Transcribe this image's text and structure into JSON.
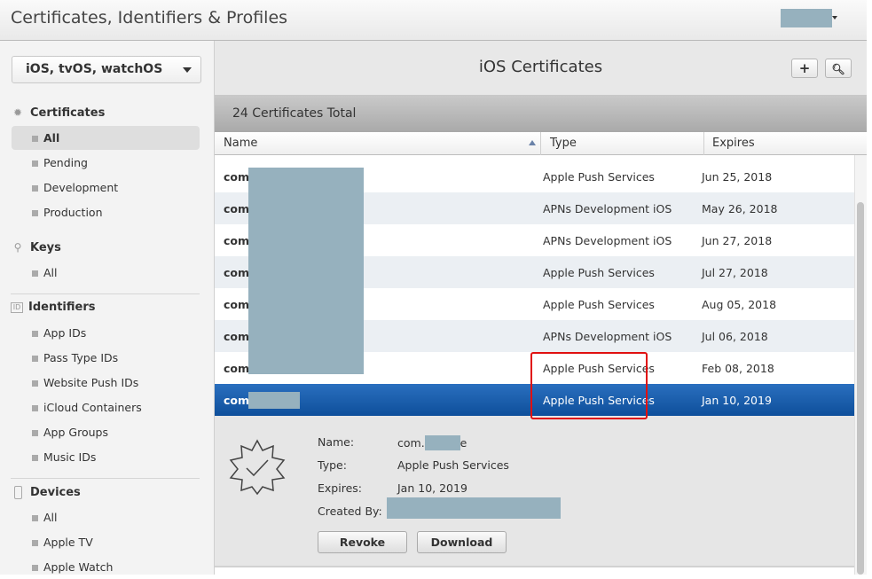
{
  "header": {
    "title": "Certificates, Identifiers & Profiles"
  },
  "sidebar": {
    "platform": "iOS, tvOS, watchOS",
    "sections": [
      {
        "label": "Certificates",
        "icon": "certificate-icon",
        "items": [
          "All",
          "Pending",
          "Development",
          "Production"
        ]
      },
      {
        "label": "Keys",
        "icon": "key-icon",
        "items": [
          "All"
        ]
      },
      {
        "label": "Identifiers",
        "icon": "id-icon",
        "icon_text": "ID",
        "items": [
          "App IDs",
          "Pass Type IDs",
          "Website Push IDs",
          "iCloud Containers",
          "App Groups",
          "Music IDs"
        ]
      },
      {
        "label": "Devices",
        "icon": "device-icon",
        "items": [
          "All",
          "Apple TV",
          "Apple Watch"
        ]
      }
    ]
  },
  "main": {
    "title": "iOS Certificates",
    "add": "+",
    "total": "24 Certificates Total",
    "columns": [
      "Name",
      "Type",
      "Expires"
    ],
    "rows": [
      {
        "name": "com.",
        "type": "Apple Push Services",
        "expires": "Jun 25, 2018"
      },
      {
        "name": "com.",
        "type": "APNs Development iOS",
        "expires": "May 26, 2018"
      },
      {
        "name": "com.",
        "type": "APNs Development iOS",
        "expires": "Jun 27, 2018"
      },
      {
        "name": "com.",
        "type": "Apple Push Services",
        "expires": "Jul 27, 2018"
      },
      {
        "name": "com.",
        "type": "Apple Push Services",
        "expires": "Aug 05, 2018"
      },
      {
        "name": "com.",
        "type": "APNs Development iOS",
        "expires": "Jul 06, 2018"
      },
      {
        "name": "com.",
        "type": "Apple Push Services",
        "expires": "Feb 08, 2018"
      },
      {
        "name": "com.",
        "type": "Apple Push Services",
        "expires": "Jan 10, 2019"
      }
    ],
    "selected_row": 7,
    "details": {
      "labels": {
        "name": "Name:",
        "type": "Type:",
        "expires": "Expires:",
        "created_by": "Created By:"
      },
      "name_prefix": "com.",
      "name_suffix": "e",
      "type": "Apple Push Services",
      "expires": "Jan 10, 2019",
      "revoke": "Revoke",
      "download": "Download"
    }
  },
  "colors": {
    "selected_row": "#1a5aa8",
    "highlight": "#e01010",
    "redaction": "#96b1be"
  }
}
